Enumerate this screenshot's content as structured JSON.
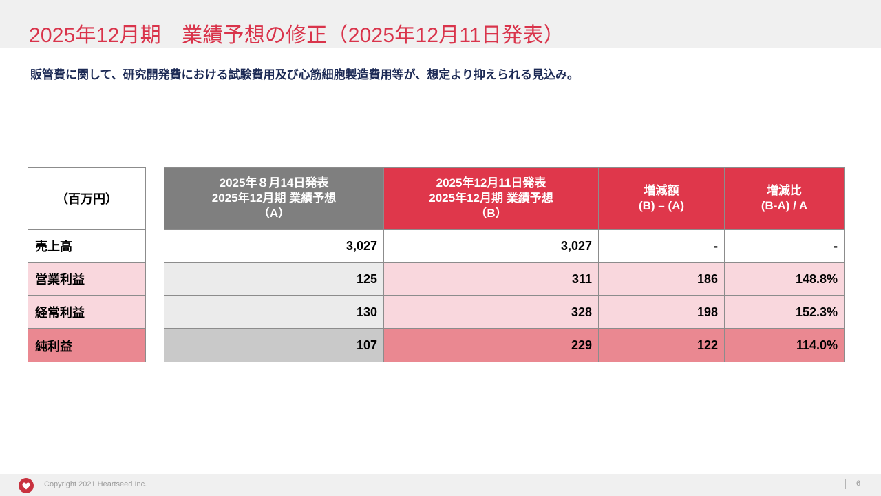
{
  "header": {
    "title": "2025年12月期　業績予想の修正（2025年12月11日発表）"
  },
  "lead_text": "販管費に関して、研究開発費における試験費用及び心筋細胞製造費用等が、想定より抑えられる見込み。",
  "table": {
    "unit_label": "（百万円）",
    "columns": [
      {
        "lines": [
          "2025年８月14日発表",
          "2025年12月期 業績予想",
          "（A）"
        ]
      },
      {
        "lines": [
          "2025年12月11日発表",
          "2025年12月期 業績予想",
          "（B）"
        ]
      },
      {
        "lines": [
          "増減額",
          "(B) – (A)"
        ]
      },
      {
        "lines": [
          "増減比",
          "(B-A) / A"
        ]
      }
    ],
    "rows": [
      {
        "label": "売上高",
        "values": [
          "3,027",
          "3,027",
          "-",
          "-"
        ]
      },
      {
        "label": "営業利益",
        "values": [
          "125",
          "311",
          "186",
          "148.8%"
        ]
      },
      {
        "label": "経常利益",
        "values": [
          "130",
          "328",
          "198",
          "152.3%"
        ]
      },
      {
        "label": "純利益",
        "values": [
          "107",
          "229",
          "122",
          "114.0%"
        ]
      }
    ]
  },
  "colors": {
    "title": "#d9344b",
    "header_gray": "#7f7f7f",
    "header_red": "#df374b",
    "row_pink": "#f9d7dd",
    "row_pink_gray": "#ebebeb",
    "row_dark_pink": "#ea8891",
    "row_dark_gray": "#c9c9c9"
  },
  "footer": {
    "logo_icon": "heart-icon",
    "copyright": "Copyright 2021 Heartseed Inc.",
    "page_number": "6"
  }
}
